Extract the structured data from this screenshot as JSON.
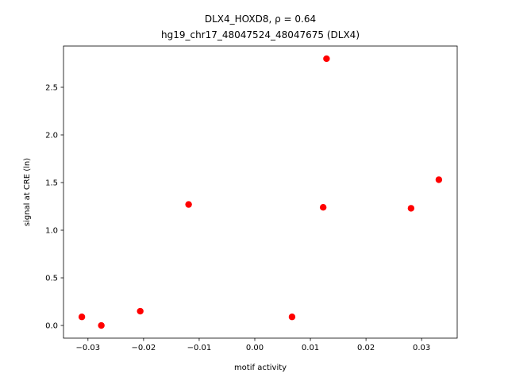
{
  "chart_data": {
    "type": "scatter",
    "title": "DLX4_HOXD8, ρ = 0.64",
    "subtitle": "hg19_chr17_48047524_48047675 (DLX4)",
    "x_label": "motif activity",
    "y_label": "signal at CRE (ln)",
    "x": [
      -0.0311,
      -0.0276,
      -0.0206,
      -0.0119,
      0.0067,
      0.0123,
      0.0129,
      0.0281,
      0.0331
    ],
    "values": [
      0.09,
      0.0,
      0.15,
      1.27,
      0.09,
      1.24,
      2.8,
      1.23,
      1.53
    ],
    "color": "#ff0000",
    "xlim": [
      -0.0344,
      0.0364
    ],
    "ylim": [
      -0.133,
      2.933
    ],
    "xticks": [
      {
        "value": -0.03,
        "label": "−0.03"
      },
      {
        "value": -0.02,
        "label": "−0.02"
      },
      {
        "value": -0.01,
        "label": "−0.01"
      },
      {
        "value": 0,
        "label": "0.00"
      },
      0.01,
      0.02,
      0.03
    ],
    "yticks": [
      {
        "value": 0,
        "label": "0.0"
      },
      0.5,
      {
        "value": 1,
        "label": "1.0"
      },
      1.5,
      {
        "value": 2,
        "label": "2.0"
      },
      2.5
    ],
    "grid": false
  }
}
